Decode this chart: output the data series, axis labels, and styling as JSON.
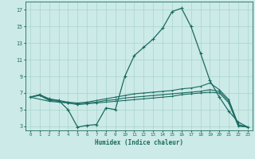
{
  "xlabel": "Humidex (Indice chaleur)",
  "bg_color": "#cceae7",
  "grid_color": "#aad4cf",
  "line_color": "#1a6b60",
  "xlim": [
    -0.5,
    23.5
  ],
  "ylim": [
    2.5,
    18.0
  ],
  "xticks": [
    0,
    1,
    2,
    3,
    4,
    5,
    6,
    7,
    8,
    9,
    10,
    11,
    12,
    13,
    14,
    15,
    16,
    17,
    18,
    19,
    20,
    21,
    22,
    23
  ],
  "yticks": [
    3,
    5,
    7,
    9,
    11,
    13,
    15,
    17
  ],
  "line1_x": [
    0,
    1,
    2,
    3,
    4,
    5,
    6,
    7,
    8,
    9,
    10,
    11,
    12,
    13,
    14,
    15,
    16,
    17,
    18,
    19,
    20,
    21,
    22,
    23
  ],
  "line1_y": [
    6.5,
    6.8,
    6.3,
    6.1,
    5.0,
    2.9,
    3.1,
    3.2,
    5.2,
    5.0,
    9.0,
    11.5,
    12.5,
    13.5,
    14.8,
    16.8,
    17.2,
    15.0,
    11.8,
    8.5,
    6.5,
    4.8,
    3.5,
    2.9
  ],
  "line2_x": [
    0,
    1,
    2,
    3,
    4,
    5,
    6,
    7,
    8,
    9,
    10,
    11,
    12,
    13,
    14,
    15,
    16,
    17,
    18,
    19,
    20,
    21,
    22,
    23
  ],
  "line2_y": [
    6.5,
    6.8,
    6.2,
    6.1,
    5.9,
    5.8,
    5.9,
    6.1,
    6.3,
    6.5,
    6.7,
    6.9,
    7.0,
    7.1,
    7.2,
    7.3,
    7.5,
    7.6,
    7.8,
    8.2,
    7.4,
    6.2,
    3.2,
    2.9
  ],
  "line3_x": [
    0,
    1,
    2,
    3,
    4,
    5,
    6,
    7,
    8,
    9,
    10,
    11,
    12,
    13,
    14,
    15,
    16,
    17,
    18,
    19,
    20,
    21,
    22,
    23
  ],
  "line3_y": [
    6.5,
    6.7,
    6.1,
    6.0,
    5.8,
    5.7,
    5.8,
    5.9,
    6.1,
    6.2,
    6.4,
    6.5,
    6.6,
    6.7,
    6.8,
    6.9,
    7.0,
    7.1,
    7.2,
    7.4,
    7.2,
    6.0,
    3.1,
    2.9
  ],
  "line4_x": [
    0,
    2,
    3,
    4,
    5,
    6,
    7,
    8,
    9,
    10,
    11,
    12,
    13,
    14,
    15,
    16,
    17,
    18,
    19,
    20,
    21,
    22,
    23
  ],
  "line4_y": [
    6.5,
    6.0,
    5.9,
    5.8,
    5.6,
    5.7,
    5.8,
    5.9,
    6.0,
    6.1,
    6.2,
    6.3,
    6.4,
    6.5,
    6.6,
    6.8,
    6.9,
    7.0,
    7.1,
    7.0,
    5.8,
    3.0,
    2.9
  ]
}
